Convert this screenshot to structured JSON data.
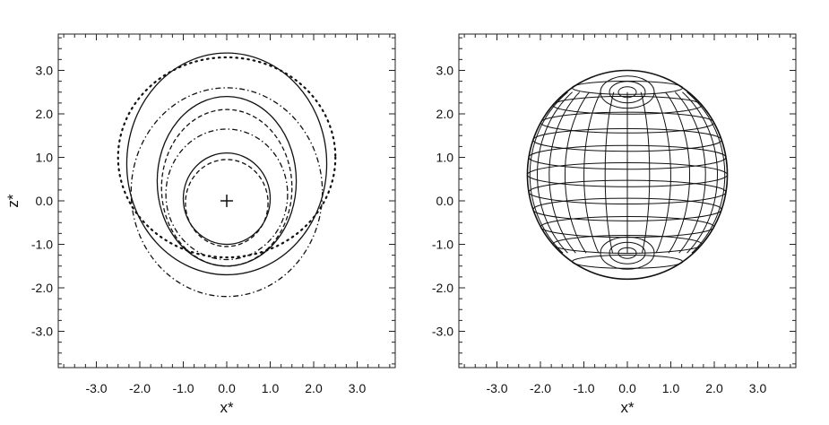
{
  "chart_data": [
    {
      "type": "line",
      "title": "",
      "xlabel": "x*",
      "ylabel": "z*",
      "xlim": [
        -4.0,
        4.0
      ],
      "ylim": [
        -4.0,
        4.0
      ],
      "xticks": [
        "-3.0",
        "-2.0",
        "-1.0",
        "0.0",
        "1.0",
        "2.0",
        "3.0"
      ],
      "yticks": [
        "3.0",
        "2.0",
        "1.0",
        "0.0",
        "-1.0",
        "-2.0",
        "-3.0"
      ],
      "center_marker": {
        "x": 0.0,
        "z": 0.0,
        "symbol": "+"
      },
      "series": [
        {
          "style": "solid",
          "shape": "ellipse",
          "cx": 0.0,
          "cz": 0.85,
          "rx": 2.3,
          "rz": 2.55
        },
        {
          "style": "dotted",
          "shape": "ellipse",
          "cx": 0.0,
          "cz": 1.0,
          "rx": 2.5,
          "rz": 2.3
        },
        {
          "style": "dash-dot",
          "shape": "ellipse",
          "cx": 0.0,
          "cz": 0.2,
          "rx": 2.2,
          "rz": 2.4
        },
        {
          "style": "solid",
          "shape": "ellipse",
          "cx": 0.0,
          "cz": 0.45,
          "rx": 1.6,
          "rz": 1.95
        },
        {
          "style": "dashed",
          "shape": "ellipse",
          "cx": 0.0,
          "cz": 0.3,
          "rx": 1.5,
          "rz": 1.8
        },
        {
          "style": "dash-dot",
          "shape": "ellipse",
          "cx": 0.0,
          "cz": 0.15,
          "rx": 1.4,
          "rz": 1.5
        },
        {
          "style": "solid",
          "shape": "ellipse",
          "cx": 0.0,
          "cz": 0.05,
          "rx": 1.0,
          "rz": 1.05
        },
        {
          "style": "dashed",
          "shape": "ellipse",
          "cx": 0.0,
          "cz": -0.05,
          "rx": 0.95,
          "rz": 1.0
        }
      ]
    },
    {
      "type": "line",
      "title": "",
      "xlabel": "x*",
      "ylabel": "",
      "xlim": [
        -4.0,
        4.0
      ],
      "ylim": [
        -4.0,
        4.0
      ],
      "xticks": [
        "-3.0",
        "-2.0",
        "-1.0",
        "0.0",
        "1.0",
        "2.0",
        "3.0"
      ],
      "yticks": [
        "3.0",
        "2.0",
        "1.0",
        "0.0",
        "-1.0",
        "-2.0",
        "-3.0"
      ],
      "wireframe": {
        "center": [
          0.0,
          0.6
        ],
        "rx": 2.3,
        "rz": 2.4,
        "top_pole_z": 2.5,
        "bottom_pole_z": -1.2,
        "meridians": 14,
        "parallels": 12
      }
    }
  ]
}
